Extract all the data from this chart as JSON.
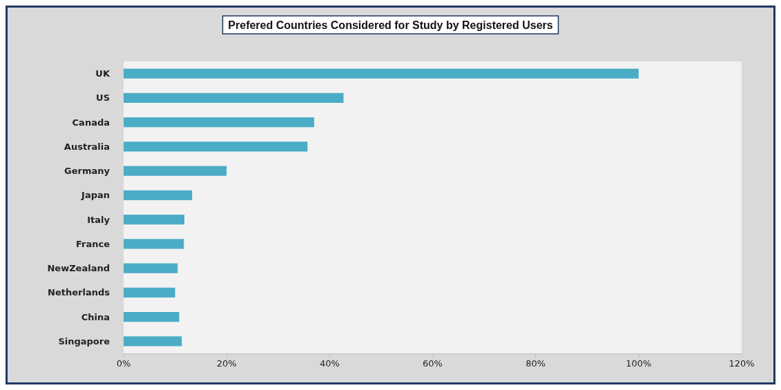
{
  "chart_data": {
    "type": "bar",
    "orientation": "horizontal",
    "title": "Prefered Countries Considered for Study by Registered Users",
    "categories": [
      "UK",
      "US",
      "Canada",
      "Australia",
      "Germany",
      "Japan",
      "Italy",
      "France",
      "NewZealand",
      "Netherlands",
      "China",
      "Singapore"
    ],
    "values": [
      100,
      42.7,
      37,
      35.7,
      20,
      13.3,
      11.8,
      11.7,
      10.5,
      10,
      10.8,
      11.3
    ],
    "color": "#4bacc6",
    "xlim": [
      0,
      120
    ],
    "xticks": [
      {
        "value": 0,
        "label": "0%"
      },
      {
        "value": 20,
        "label": "20%"
      },
      {
        "value": 40,
        "label": "40%"
      },
      {
        "value": 60,
        "label": "60%"
      },
      {
        "value": 80,
        "label": "80%"
      },
      {
        "value": 100,
        "label": "100%"
      },
      {
        "value": 120,
        "label": "120%"
      }
    ],
    "grid": false
  }
}
